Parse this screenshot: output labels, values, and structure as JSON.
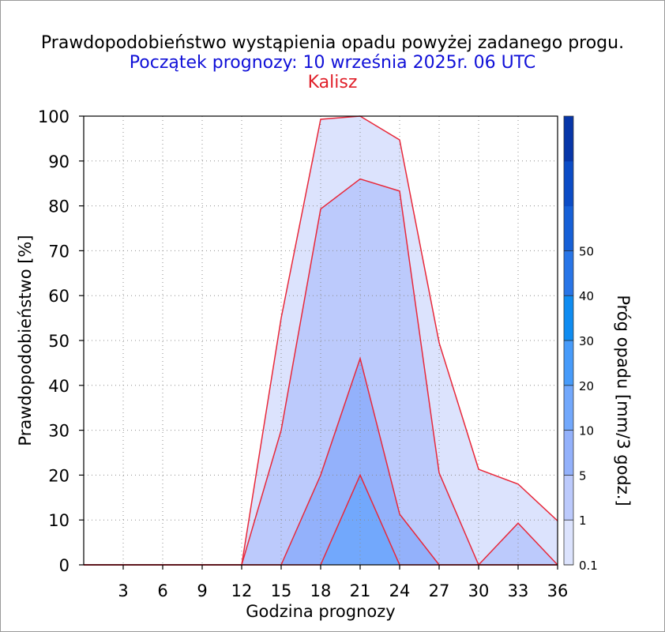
{
  "titles": {
    "main": "Prawdopodobieństwo wystąpienia opadu powyżej zadanego progu.",
    "start": "Początek prognozy: 10 września 2025r. 06 UTC",
    "station": "Kalisz"
  },
  "chart_data": {
    "type": "area",
    "xlabel": "Godzina prognozy",
    "ylabel": "Prawdopodobieństwo [%]",
    "xlim": [
      0,
      36
    ],
    "ylim": [
      0,
      100
    ],
    "x_ticks": [
      3,
      6,
      9,
      12,
      15,
      18,
      21,
      24,
      27,
      30,
      33,
      36
    ],
    "y_ticks": [
      0,
      10,
      20,
      30,
      40,
      50,
      60,
      70,
      80,
      90,
      100
    ],
    "grid": true,
    "x": [
      0,
      3,
      6,
      9,
      12,
      15,
      18,
      21,
      24,
      27,
      30,
      33,
      36
    ],
    "series": [
      {
        "name": "0.1",
        "color": "#dce3fd",
        "values": [
          0,
          0,
          0,
          0,
          0,
          55,
          99.3,
          100,
          94.7,
          49.5,
          21.3,
          18,
          9.8
        ]
      },
      {
        "name": "1",
        "color": "#bccafc",
        "values": [
          0,
          0,
          0,
          0,
          0,
          30,
          79.3,
          86,
          83.3,
          20.5,
          0,
          9.3,
          0
        ]
      },
      {
        "name": "5",
        "color": "#93b1fb",
        "values": [
          0,
          0,
          0,
          0,
          0,
          0,
          20,
          46,
          11.3,
          0,
          0,
          0,
          0
        ]
      },
      {
        "name": "10",
        "color": "#72a8fc",
        "values": [
          0,
          0,
          0,
          0,
          0,
          0,
          0,
          20,
          0,
          0,
          0,
          0,
          0
        ]
      }
    ],
    "line_color": "#e8283a",
    "colorbar": {
      "label": "Próg opadu [mm/3 godz.]",
      "tick_labels": [
        "0.1",
        "1",
        "5",
        "10",
        "20",
        "30",
        "40",
        "50"
      ],
      "colors": [
        "#dce3fd",
        "#bccafc",
        "#93b1fb",
        "#72a8fc",
        "#479bfa",
        "#0f8cf1",
        "#2875e7",
        "#1660d7",
        "#0b4cc6",
        "#0736a8"
      ]
    }
  }
}
